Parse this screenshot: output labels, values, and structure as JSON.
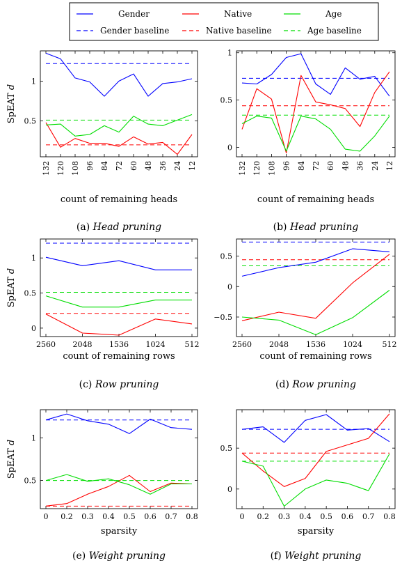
{
  "legend": {
    "entries": [
      {
        "label": "Gender",
        "color": "#0000ff",
        "dashed": false
      },
      {
        "label": "Native",
        "color": "#ff0000",
        "dashed": false
      },
      {
        "label": "Age",
        "color": "#00dd00",
        "dashed": false
      },
      {
        "label": "Gender baseline",
        "color": "#0000ff",
        "dashed": true
      },
      {
        "label": "Native baseline",
        "color": "#ff0000",
        "dashed": true
      },
      {
        "label": "Age baseline",
        "color": "#00dd00",
        "dashed": true
      }
    ]
  },
  "chart_data": [
    {
      "type": "line",
      "ylabel": "SpEAT d",
      "xlabel": "count of remaining heads",
      "caption_prefix": "(a) ",
      "caption_method": "Head pruning",
      "x_ticks": [
        "132",
        "120",
        "108",
        "96",
        "84",
        "72",
        "60",
        "48",
        "36",
        "24",
        "12"
      ],
      "x_tick_rotate": true,
      "ylim": [
        0.05,
        1.38
      ],
      "y_ticks": [
        {
          "v": 0.5,
          "t": "0.5"
        },
        {
          "v": 1,
          "t": "1"
        }
      ],
      "series": [
        {
          "name": "Gender",
          "color": "#0000ff",
          "values": [
            1.35,
            1.28,
            1.04,
            0.99,
            0.81,
            1.0,
            1.09,
            0.81,
            0.97,
            0.99,
            1.03
          ]
        },
        {
          "name": "Native",
          "color": "#ff0000",
          "values": [
            0.48,
            0.17,
            0.28,
            0.22,
            0.22,
            0.18,
            0.3,
            0.21,
            0.23,
            0.08,
            0.33
          ]
        },
        {
          "name": "Age",
          "color": "#00dd00",
          "values": [
            0.45,
            0.46,
            0.31,
            0.33,
            0.44,
            0.36,
            0.56,
            0.46,
            0.44,
            0.51,
            0.58
          ]
        }
      ],
      "baselines": [
        {
          "name": "Gender baseline",
          "color": "#0000ff",
          "value": 1.22
        },
        {
          "name": "Native baseline",
          "color": "#ff0000",
          "value": 0.2
        },
        {
          "name": "Age baseline",
          "color": "#00dd00",
          "value": 0.51
        }
      ]
    },
    {
      "type": "line",
      "ylabel": "",
      "xlabel": "count of remaining heads",
      "caption_prefix": "(b) ",
      "caption_method": "Head pruning",
      "x_ticks": [
        "132",
        "120",
        "108",
        "96",
        "84",
        "72",
        "60",
        "48",
        "36",
        "24",
        "12"
      ],
      "x_tick_rotate": true,
      "ylim": [
        -0.1,
        1.02
      ],
      "y_ticks": [
        {
          "v": 0,
          "t": "0"
        },
        {
          "v": 0.5,
          "t": "0.5"
        },
        {
          "v": 1,
          "t": "1"
        }
      ],
      "series": [
        {
          "name": "Gender",
          "color": "#0000ff",
          "values": [
            0.68,
            0.67,
            0.77,
            0.95,
            0.99,
            0.67,
            0.56,
            0.84,
            0.72,
            0.75,
            0.54
          ]
        },
        {
          "name": "Native",
          "color": "#ff0000",
          "values": [
            0.19,
            0.62,
            0.51,
            -0.06,
            0.76,
            0.48,
            0.45,
            0.41,
            0.22,
            0.58,
            0.8
          ]
        },
        {
          "name": "Age",
          "color": "#00dd00",
          "values": [
            0.25,
            0.33,
            0.31,
            -0.04,
            0.33,
            0.3,
            0.19,
            -0.02,
            -0.04,
            0.12,
            0.33
          ]
        }
      ],
      "baselines": [
        {
          "name": "Gender baseline",
          "color": "#0000ff",
          "value": 0.73
        },
        {
          "name": "Native baseline",
          "color": "#ff0000",
          "value": 0.44
        },
        {
          "name": "Age baseline",
          "color": "#00dd00",
          "value": 0.34
        }
      ]
    },
    {
      "type": "line",
      "ylabel": "SpEAT d",
      "xlabel": "count of remaining rows",
      "caption_prefix": "(c) ",
      "caption_method": "Row pruning",
      "x_ticks": [
        "2560",
        "2048",
        "1536",
        "1024",
        "512"
      ],
      "x_tick_rotate": false,
      "ylim": [
        -0.12,
        1.27
      ],
      "y_ticks": [
        {
          "v": 0,
          "t": "0"
        },
        {
          "v": 0.5,
          "t": "0.5"
        },
        {
          "v": 1,
          "t": "1"
        }
      ],
      "series": [
        {
          "name": "Gender",
          "color": "#0000ff",
          "values": [
            1.01,
            0.89,
            0.96,
            0.83,
            0.83
          ]
        },
        {
          "name": "Native",
          "color": "#ff0000",
          "values": [
            0.2,
            -0.07,
            -0.1,
            0.13,
            0.06
          ]
        },
        {
          "name": "Age",
          "color": "#00dd00",
          "values": [
            0.46,
            0.3,
            0.3,
            0.4,
            0.4
          ]
        }
      ],
      "baselines": [
        {
          "name": "Gender baseline",
          "color": "#0000ff",
          "value": 1.21
        },
        {
          "name": "Native baseline",
          "color": "#ff0000",
          "value": 0.21
        },
        {
          "name": "Age baseline",
          "color": "#00dd00",
          "value": 0.51
        }
      ]
    },
    {
      "type": "line",
      "ylabel": "",
      "xlabel": "count of remaining rows",
      "caption_prefix": "(d) ",
      "caption_method": "Row pruning",
      "x_ticks": [
        "2560",
        "2048",
        "1536",
        "1024",
        "512"
      ],
      "x_tick_rotate": false,
      "ylim": [
        -0.82,
        0.78
      ],
      "y_ticks": [
        {
          "v": -0.5,
          "t": "−0.5"
        },
        {
          "v": 0,
          "t": "0"
        },
        {
          "v": 0.5,
          "t": "0.5"
        }
      ],
      "series": [
        {
          "name": "Gender",
          "color": "#0000ff",
          "values": [
            0.17,
            0.31,
            0.4,
            0.62,
            0.57
          ]
        },
        {
          "name": "Native",
          "color": "#ff0000",
          "values": [
            -0.56,
            -0.42,
            -0.52,
            0.06,
            0.53
          ]
        },
        {
          "name": "Age",
          "color": "#00dd00",
          "values": [
            -0.5,
            -0.55,
            -0.79,
            -0.51,
            -0.06
          ]
        }
      ],
      "baselines": [
        {
          "name": "Gender baseline",
          "color": "#0000ff",
          "value": 0.73
        },
        {
          "name": "Native baseline",
          "color": "#ff0000",
          "value": 0.44
        },
        {
          "name": "Age baseline",
          "color": "#00dd00",
          "value": 0.34
        }
      ]
    },
    {
      "type": "line",
      "ylabel": "SpEAT d",
      "xlabel": "sparsity",
      "caption_prefix": "(e) ",
      "caption_method": "Weight pruning",
      "x_ticks": [
        "0",
        "0.2",
        "0.3",
        "0.4",
        "0.5",
        "0.6",
        "0.7",
        "0.8"
      ],
      "x_tick_rotate": false,
      "ylim": [
        0.17,
        1.33
      ],
      "y_ticks": [
        {
          "v": 0.5,
          "t": "0.5"
        },
        {
          "v": 1,
          "t": "1"
        }
      ],
      "series": [
        {
          "name": "Gender",
          "color": "#0000ff",
          "values": [
            1.21,
            1.28,
            1.2,
            1.16,
            1.05,
            1.22,
            1.12,
            1.1
          ]
        },
        {
          "name": "Native",
          "color": "#ff0000",
          "values": [
            0.2,
            0.23,
            0.34,
            0.43,
            0.56,
            0.37,
            0.47,
            0.46
          ]
        },
        {
          "name": "Age",
          "color": "#00dd00",
          "values": [
            0.5,
            0.57,
            0.49,
            0.52,
            0.45,
            0.34,
            0.46,
            0.46
          ]
        }
      ],
      "baselines": [
        {
          "name": "Gender baseline",
          "color": "#0000ff",
          "value": 1.21
        },
        {
          "name": "Native baseline",
          "color": "#ff0000",
          "value": 0.2
        },
        {
          "name": "Age baseline",
          "color": "#00dd00",
          "value": 0.5
        }
      ]
    },
    {
      "type": "line",
      "ylabel": "",
      "xlabel": "sparsity",
      "caption_prefix": "(f) ",
      "caption_method": "Weight pruning",
      "x_ticks": [
        "0",
        "0.2",
        "0.3",
        "0.4",
        "0.5",
        "0.6",
        "0.7",
        "0.8"
      ],
      "x_tick_rotate": false,
      "ylim": [
        -0.24,
        0.97
      ],
      "y_ticks": [
        {
          "v": 0,
          "t": "0"
        },
        {
          "v": 0.5,
          "t": "0.5"
        }
      ],
      "series": [
        {
          "name": "Gender",
          "color": "#0000ff",
          "values": [
            0.73,
            0.76,
            0.57,
            0.84,
            0.91,
            0.72,
            0.74,
            0.58
          ]
        },
        {
          "name": "Native",
          "color": "#ff0000",
          "values": [
            0.44,
            0.22,
            0.03,
            0.13,
            0.46,
            0.54,
            0.62,
            0.92
          ]
        },
        {
          "name": "Age",
          "color": "#00dd00",
          "values": [
            0.34,
            0.28,
            -0.21,
            0.0,
            0.11,
            0.07,
            -0.02,
            0.43
          ]
        }
      ],
      "baselines": [
        {
          "name": "Gender baseline",
          "color": "#0000ff",
          "value": 0.73
        },
        {
          "name": "Native baseline",
          "color": "#ff0000",
          "value": 0.44
        },
        {
          "name": "Age baseline",
          "color": "#00dd00",
          "value": 0.34
        }
      ]
    }
  ]
}
